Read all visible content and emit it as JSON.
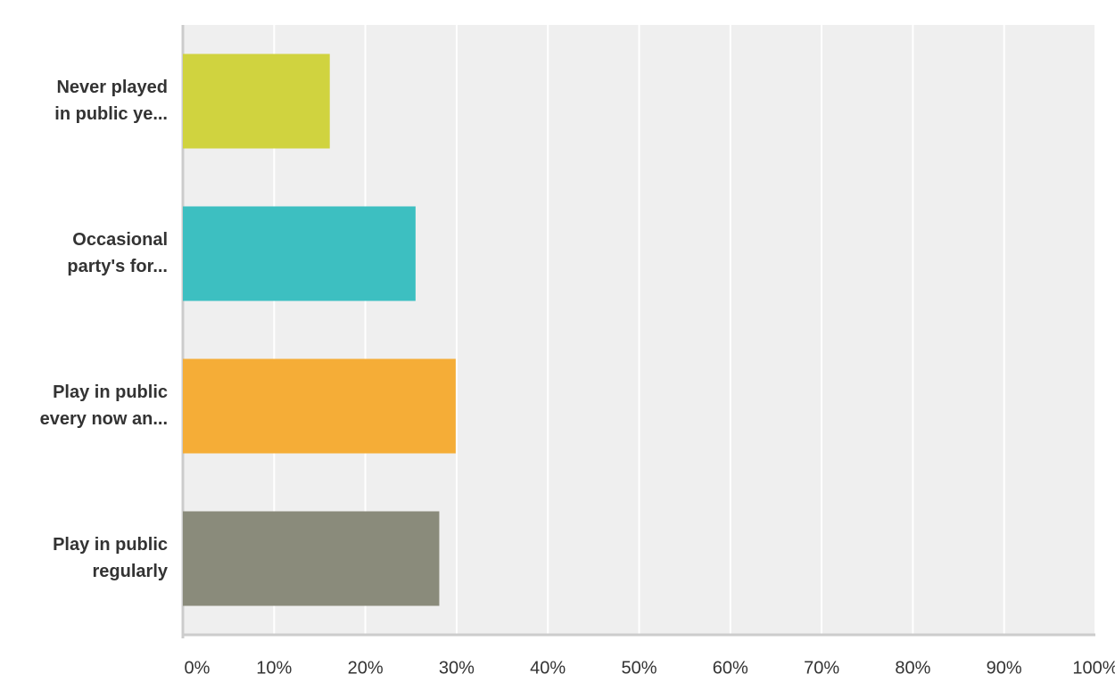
{
  "chart_data": {
    "type": "barh",
    "categories": [
      [
        "Never played",
        "in public ye..."
      ],
      [
        "Occasional",
        "party's for..."
      ],
      [
        "Play in public",
        "every now an..."
      ],
      [
        "Play in public",
        "regularly"
      ]
    ],
    "values": [
      16.1,
      25.5,
      29.9,
      28.1
    ],
    "colors": [
      "#d0d33f",
      "#3dbfc1",
      "#f5ad37",
      "#8a8b7b"
    ],
    "xlim": [
      0,
      100
    ],
    "xticks": [
      {
        "value": 0,
        "label": "0%"
      },
      {
        "value": 10,
        "label": "10%"
      },
      {
        "value": 20,
        "label": "20%"
      },
      {
        "value": 30,
        "label": "30%"
      },
      {
        "value": 40,
        "label": "40%"
      },
      {
        "value": 50,
        "label": "50%"
      },
      {
        "value": 60,
        "label": "60%"
      },
      {
        "value": 70,
        "label": "70%"
      },
      {
        "value": 80,
        "label": "80%"
      },
      {
        "value": 90,
        "label": "90%"
      },
      {
        "value": 100,
        "label": "100%"
      }
    ],
    "grid": true
  }
}
